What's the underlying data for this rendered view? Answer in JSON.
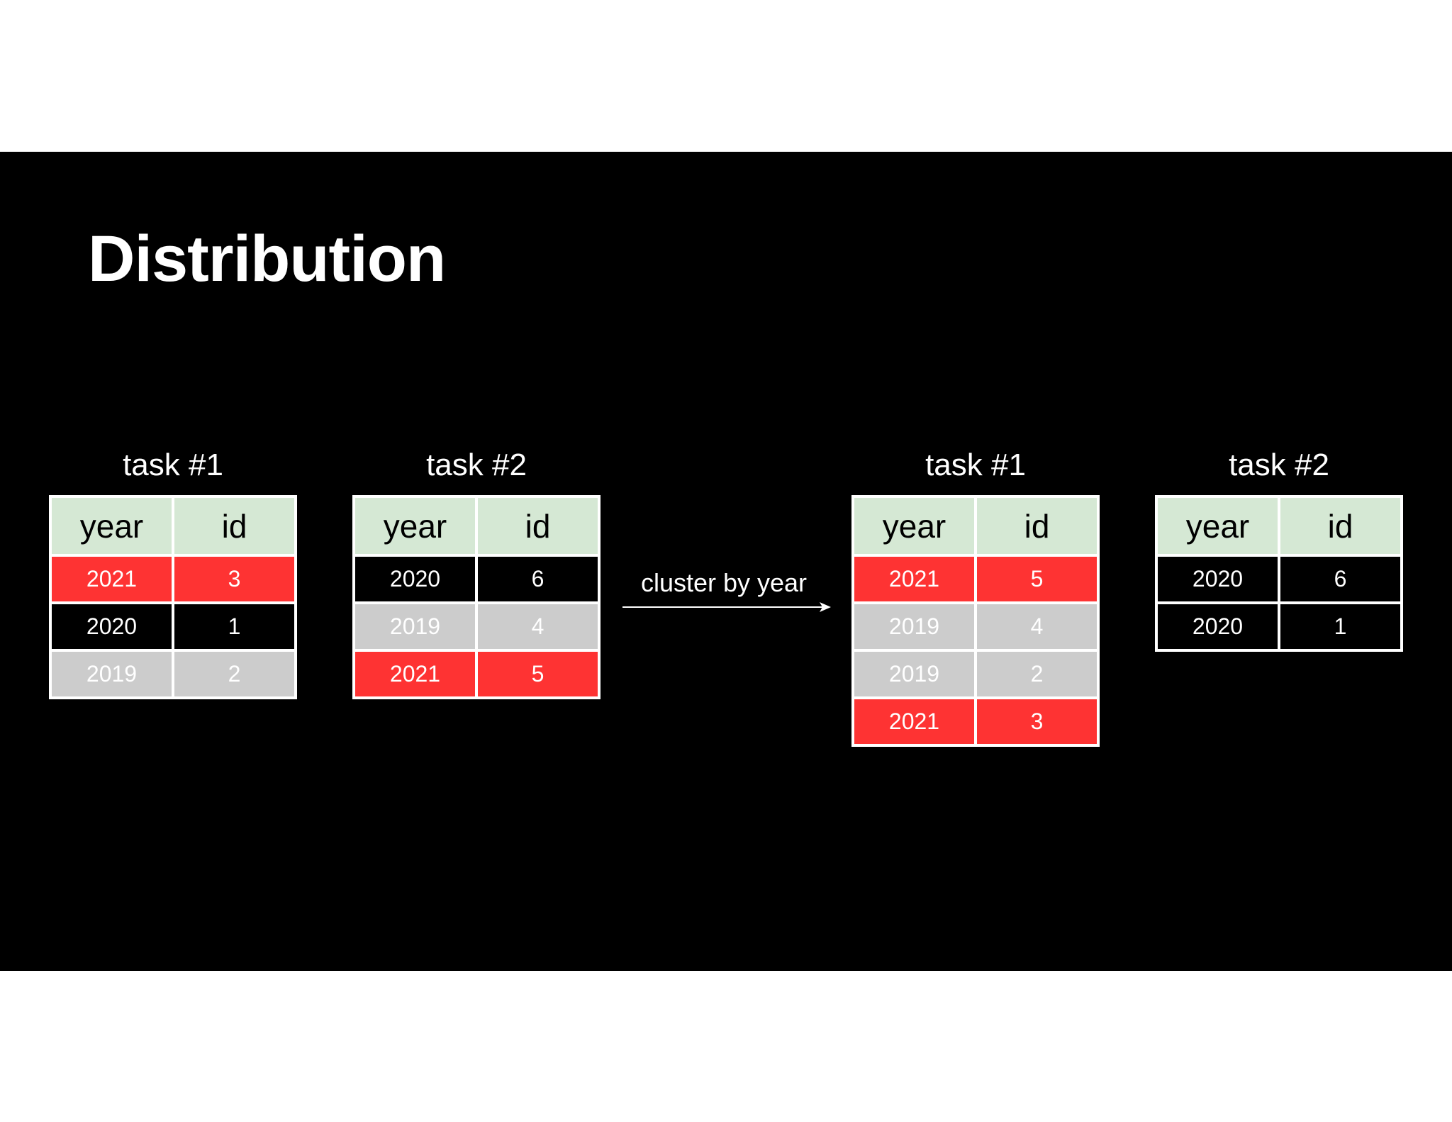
{
  "title": "Distribution",
  "arrow_label": "cluster by year",
  "colors": {
    "header": "#d5e8d4",
    "red": "#fe3333",
    "black": "#000000",
    "gray": "#cccccc"
  },
  "tables": [
    {
      "label": "task #1",
      "headers": [
        "year",
        "id"
      ],
      "rows": [
        {
          "year": "2021",
          "id": "3",
          "color": "red"
        },
        {
          "year": "2020",
          "id": "1",
          "color": "black"
        },
        {
          "year": "2019",
          "id": "2",
          "color": "gray"
        }
      ]
    },
    {
      "label": "task #2",
      "headers": [
        "year",
        "id"
      ],
      "rows": [
        {
          "year": "2020",
          "id": "6",
          "color": "black"
        },
        {
          "year": "2019",
          "id": "4",
          "color": "gray"
        },
        {
          "year": "2021",
          "id": "5",
          "color": "red"
        }
      ]
    },
    {
      "label": "task #1",
      "headers": [
        "year",
        "id"
      ],
      "rows": [
        {
          "year": "2021",
          "id": "5",
          "color": "red"
        },
        {
          "year": "2019",
          "id": "4",
          "color": "gray"
        },
        {
          "year": "2019",
          "id": "2",
          "color": "gray"
        },
        {
          "year": "2021",
          "id": "3",
          "color": "red"
        }
      ]
    },
    {
      "label": "task #2",
      "headers": [
        "year",
        "id"
      ],
      "rows": [
        {
          "year": "2020",
          "id": "6",
          "color": "black"
        },
        {
          "year": "2020",
          "id": "1",
          "color": "black"
        }
      ]
    }
  ]
}
